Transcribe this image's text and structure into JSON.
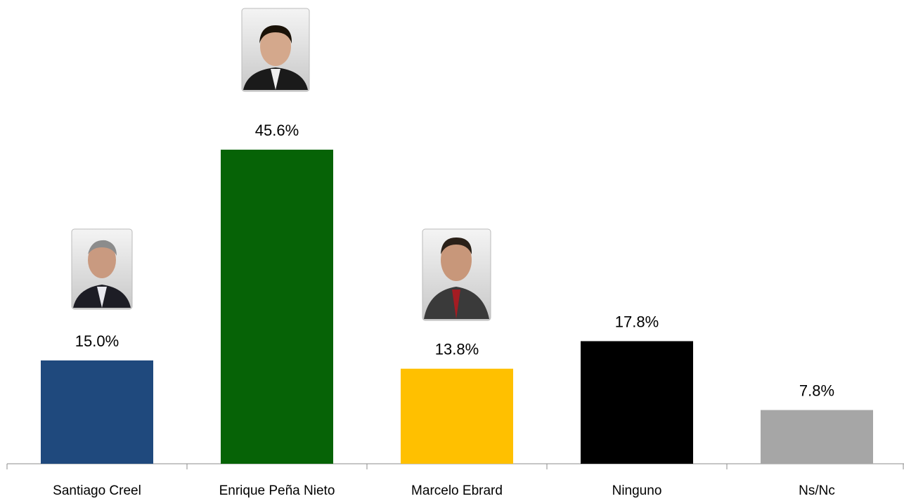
{
  "chart_data": {
    "type": "bar",
    "categories": [
      "Santiago Creel",
      "Enrique Peña Nieto",
      "Marcelo Ebrard",
      "Ninguno",
      "Ns/Nc"
    ],
    "values": [
      15.0,
      45.6,
      13.8,
      17.8,
      7.8
    ],
    "value_labels": [
      "15.0%",
      "45.6%",
      "13.8%",
      "17.8%",
      "7.8%"
    ],
    "colors": [
      "#1f497d",
      "#066306",
      "#ffc000",
      "#000000",
      "#a6a6a6"
    ]
  }
}
